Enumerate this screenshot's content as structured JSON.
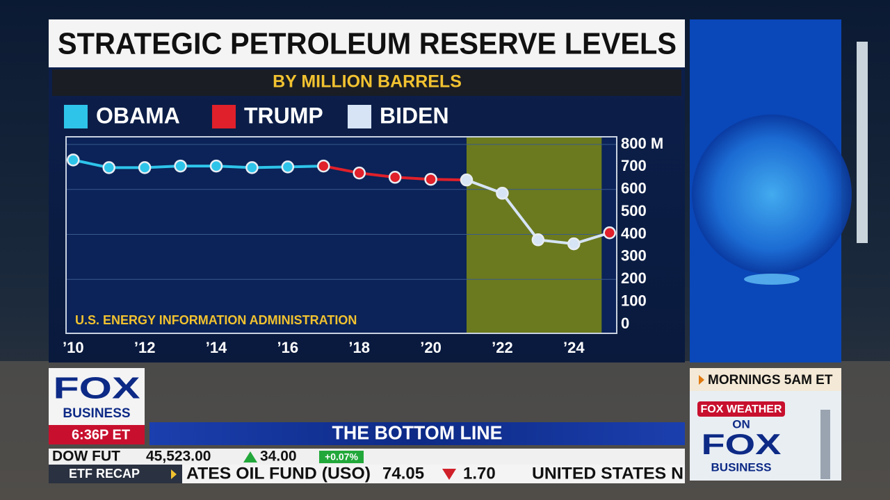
{
  "chart_data": {
    "type": "line",
    "title": "STRATEGIC PETROLEUM RESERVE LEVELS",
    "subtitle": "BY MILLION BARRELS",
    "source": "U.S. ENERGY INFORMATION ADMINISTRATION",
    "x": [
      2010,
      2011,
      2012,
      2013,
      2014,
      2015,
      2016,
      2017,
      2018,
      2019,
      2020,
      2021,
      2022,
      2023,
      2024,
      2025
    ],
    "series": [
      {
        "name": "OBAMA",
        "color": "#2ec4ea",
        "values": [
          731,
          697,
          697,
          704,
          704,
          697,
          700,
          null,
          null,
          null,
          null,
          null,
          null,
          null,
          null,
          null
        ]
      },
      {
        "name": "TRUMP",
        "color": "#e0202a",
        "values": [
          null,
          null,
          null,
          null,
          null,
          null,
          null,
          704,
          673,
          654,
          645,
          null,
          null,
          null,
          null,
          407
        ]
      },
      {
        "name": "BIDEN",
        "color": "#d6e4f5",
        "values": [
          null,
          null,
          null,
          null,
          null,
          null,
          null,
          null,
          null,
          null,
          null,
          642,
          583,
          376,
          358,
          null
        ]
      }
    ],
    "xlim": [
      2009.8,
      2025.2
    ],
    "xticks": [
      {
        "value": 2010,
        "label": "’10"
      },
      {
        "value": 2012,
        "label": "’12"
      },
      {
        "value": 2014,
        "label": "’14"
      },
      {
        "value": 2016,
        "label": "’16"
      },
      {
        "value": 2018,
        "label": "’18"
      },
      {
        "value": 2020,
        "label": "’20"
      },
      {
        "value": 2022,
        "label": "’22"
      },
      {
        "value": 2024,
        "label": "’24"
      }
    ],
    "ylim": [
      -40,
      834
    ],
    "yticks": [
      0,
      100,
      200,
      300,
      400,
      500,
      600,
      700,
      {
        "value": 800,
        "label": "800 M"
      }
    ],
    "grid": true,
    "shade_series": 2,
    "shade_color": "#6b7a1e"
  },
  "network": {
    "logo_top": "FOX",
    "logo_bottom": "BUSINESS",
    "time": "6:36P ET",
    "show": "THE BOTTOM LINE"
  },
  "ticker": {
    "label": "DOW FUT",
    "value": "45,523.00",
    "change": "34.00",
    "pct": "+0.07%",
    "section": "ETF RECAP",
    "item": "ATES OIL FUND (USO)",
    "price": "74.05",
    "item_change": "1.70",
    "next": "UNITED STATES N"
  },
  "promo": {
    "time": "MORNINGS 5AM ET",
    "brand": "FOX WEATHER",
    "on": "ON",
    "logo_top": "FOX",
    "logo_bottom": "BUSINESS"
  }
}
